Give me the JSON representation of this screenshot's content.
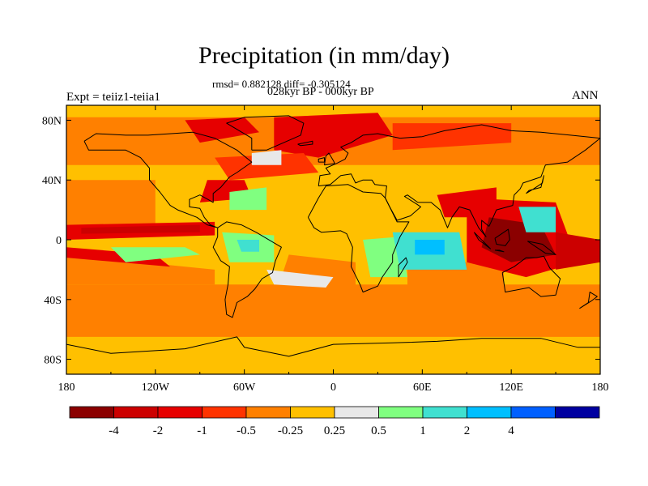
{
  "header": {
    "title": "Precipitation (in mm/day)",
    "stats": "rmsd= 0.882128 diff= -0.305124",
    "period": "028kyr BP - 000kyr BP",
    "experiment": "Expt = teiiz1-teiia1",
    "season": "ANN"
  },
  "chart_data": {
    "type": "heatmap",
    "title": "Precipitation (in mm/day)",
    "subtitle": "028kyr BP - 000kyr BP",
    "stats": {
      "rmsd": 0.882128,
      "diff": -0.305124
    },
    "x_ticks": [
      "180",
      "120W",
      "60W",
      "0",
      "60E",
      "120E",
      "180"
    ],
    "x_tick_values": [
      -180,
      -120,
      -60,
      0,
      60,
      120,
      180
    ],
    "y_ticks": [
      "80N",
      "40N",
      "0",
      "40S",
      "80S"
    ],
    "y_tick_values": [
      80,
      40,
      0,
      -40,
      -80
    ],
    "xlim": [
      -180,
      180
    ],
    "ylim": [
      -90,
      90
    ],
    "colorbar": {
      "labels": [
        "-4",
        "-2",
        "-1",
        "-0.5",
        "-0.25",
        "0.25",
        "0.5",
        "1",
        "2",
        "4"
      ],
      "levels": [
        -4,
        -2,
        -1,
        -0.5,
        -0.25,
        0.25,
        0.5,
        1,
        2,
        4
      ],
      "colors": [
        "#8b0000",
        "#cc0000",
        "#e60000",
        "#ff3300",
        "#ff8000",
        "#ffc000",
        "#e8e8e8",
        "#80ff80",
        "#40e0d0",
        "#00bfff",
        "#0060ff",
        "#0000a0"
      ]
    },
    "regions": [
      {
        "name": "background",
        "value": 0.0,
        "points": [
          [
            -180,
            90
          ],
          [
            180,
            90
          ],
          [
            180,
            -90
          ],
          [
            -180,
            -90
          ]
        ]
      },
      {
        "name": "s-ocean-band",
        "value": -0.4,
        "points": [
          [
            -180,
            -30
          ],
          [
            180,
            -30
          ],
          [
            180,
            -65
          ],
          [
            -180,
            -65
          ]
        ]
      },
      {
        "name": "n-high-lat",
        "value": -0.4,
        "points": [
          [
            -180,
            82
          ],
          [
            180,
            82
          ],
          [
            180,
            50
          ],
          [
            -180,
            50
          ]
        ]
      },
      {
        "name": "mid-ocean-s",
        "value": -0.4,
        "points": [
          [
            -180,
            -10
          ],
          [
            -80,
            -20
          ],
          [
            -80,
            -30
          ],
          [
            -180,
            -30
          ]
        ]
      },
      {
        "name": "subtropics-s-atl",
        "value": -0.4,
        "points": [
          [
            -30,
            -10
          ],
          [
            15,
            -15
          ],
          [
            15,
            -40
          ],
          [
            -40,
            -40
          ]
        ]
      },
      {
        "name": "subtropics-s-ind",
        "value": -0.4,
        "points": [
          [
            50,
            -15
          ],
          [
            115,
            -15
          ],
          [
            115,
            -35
          ],
          [
            50,
            -35
          ]
        ]
      },
      {
        "name": "n-pacific",
        "value": -0.4,
        "points": [
          [
            -180,
            40
          ],
          [
            -120,
            40
          ],
          [
            -120,
            10
          ],
          [
            -180,
            10
          ]
        ]
      },
      {
        "name": "n-atl-arctic",
        "value": -1.5,
        "points": [
          [
            -40,
            82
          ],
          [
            30,
            85
          ],
          [
            40,
            70
          ],
          [
            -10,
            55
          ],
          [
            -40,
            60
          ]
        ]
      },
      {
        "name": "greenland-n",
        "value": -1.5,
        "points": [
          [
            -100,
            80
          ],
          [
            -60,
            82
          ],
          [
            -50,
            72
          ],
          [
            -90,
            65
          ]
        ]
      },
      {
        "name": "siberia",
        "value": -0.7,
        "points": [
          [
            40,
            78
          ],
          [
            120,
            78
          ],
          [
            120,
            65
          ],
          [
            40,
            60
          ]
        ]
      },
      {
        "name": "n-atlantic-mid",
        "value": -0.7,
        "points": [
          [
            -80,
            55
          ],
          [
            -20,
            58
          ],
          [
            -10,
            45
          ],
          [
            -70,
            40
          ]
        ]
      },
      {
        "name": "gulf-band",
        "value": -1.5,
        "points": [
          [
            -85,
            40
          ],
          [
            -60,
            40
          ],
          [
            -55,
            28
          ],
          [
            -90,
            25
          ]
        ]
      },
      {
        "name": "e-pacific-itcz",
        "value": -1.5,
        "points": [
          [
            -180,
            10
          ],
          [
            -80,
            12
          ],
          [
            -80,
            3
          ],
          [
            -180,
            0
          ]
        ]
      },
      {
        "name": "itcz-core",
        "value": -3.0,
        "points": [
          [
            -170,
            8
          ],
          [
            -90,
            10
          ],
          [
            -90,
            5
          ],
          [
            -170,
            4
          ]
        ]
      },
      {
        "name": "spcz",
        "value": -1.5,
        "points": [
          [
            -180,
            -5
          ],
          [
            -120,
            -10
          ],
          [
            -110,
            -18
          ],
          [
            -180,
            -12
          ]
        ]
      },
      {
        "name": "maritime-continent",
        "value": -1.5,
        "points": [
          [
            90,
            28
          ],
          [
            150,
            25
          ],
          [
            165,
            -15
          ],
          [
            130,
            -25
          ],
          [
            90,
            -15
          ]
        ]
      },
      {
        "name": "mc-core",
        "value": -5.0,
        "points": [
          [
            105,
            15
          ],
          [
            140,
            10
          ],
          [
            150,
            -10
          ],
          [
            120,
            -15
          ],
          [
            100,
            -5
          ]
        ]
      },
      {
        "name": "w-pacific-dry",
        "value": -3.0,
        "points": [
          [
            150,
            5
          ],
          [
            180,
            0
          ],
          [
            180,
            -15
          ],
          [
            150,
            -20
          ]
        ]
      },
      {
        "name": "s-asia",
        "value": -1.5,
        "points": [
          [
            70,
            30
          ],
          [
            110,
            35
          ],
          [
            110,
            15
          ],
          [
            75,
            15
          ]
        ]
      },
      {
        "name": "amazon-wet",
        "value": 0.8,
        "points": [
          [
            -75,
            5
          ],
          [
            -40,
            3
          ],
          [
            -40,
            -15
          ],
          [
            -70,
            -15
          ]
        ]
      },
      {
        "name": "amazon-core",
        "value": 1.5,
        "points": [
          [
            -65,
            0
          ],
          [
            -50,
            0
          ],
          [
            -50,
            -8
          ],
          [
            -62,
            -8
          ]
        ]
      },
      {
        "name": "africa-wet",
        "value": 0.8,
        "points": [
          [
            20,
            0
          ],
          [
            45,
            2
          ],
          [
            50,
            -25
          ],
          [
            25,
            -25
          ]
        ]
      },
      {
        "name": "indian-wet",
        "value": 1.5,
        "points": [
          [
            40,
            5
          ],
          [
            85,
            5
          ],
          [
            90,
            -20
          ],
          [
            45,
            -20
          ]
        ]
      },
      {
        "name": "indian-core",
        "value": 3.0,
        "points": [
          [
            55,
            0
          ],
          [
            75,
            0
          ],
          [
            75,
            -10
          ],
          [
            55,
            -10
          ]
        ]
      },
      {
        "name": "e-pacific-wet",
        "value": 0.8,
        "points": [
          [
            -150,
            -5
          ],
          [
            -100,
            -5
          ],
          [
            -90,
            -10
          ],
          [
            -140,
            -15
          ]
        ]
      },
      {
        "name": "e-asia-wet",
        "value": 1.5,
        "points": [
          [
            125,
            22
          ],
          [
            150,
            22
          ],
          [
            150,
            5
          ],
          [
            130,
            5
          ]
        ]
      },
      {
        "name": "s-atl-wet",
        "value": 0.3,
        "points": [
          [
            -45,
            -20
          ],
          [
            0,
            -25
          ],
          [
            -5,
            -32
          ],
          [
            -40,
            -30
          ]
        ]
      },
      {
        "name": "n-atl-wet",
        "value": 0.8,
        "points": [
          [
            -70,
            32
          ],
          [
            -45,
            35
          ],
          [
            -45,
            20
          ],
          [
            -70,
            20
          ]
        ]
      },
      {
        "name": "green-west",
        "value": 0.3,
        "points": [
          [
            -55,
            58
          ],
          [
            -35,
            60
          ],
          [
            -35,
            50
          ],
          [
            -55,
            50
          ]
        ]
      }
    ]
  }
}
